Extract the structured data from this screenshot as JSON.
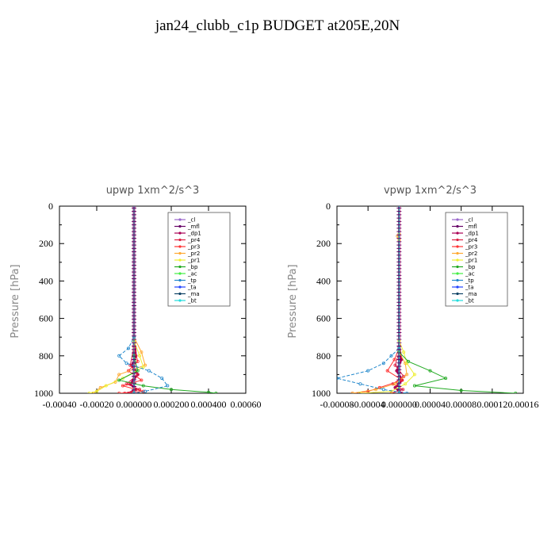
{
  "figure_title": "jan24_clubb_c1p  BUDGET at205E,20N",
  "colors": {
    "_cl": "#9966cc",
    "_mfl": "#660066",
    "_dp1": "#aa0055",
    "_pr4": "#dd2244",
    "_pr3": "#ff3333",
    "_pr2": "#ffaa33",
    "_pr1": "#eeee33",
    "_bp": "#22aa22",
    "_ac": "#44ee44",
    "_tp": "#2288cc",
    "_ta": "#2244ff",
    "_ma": "#114466",
    "_bt": "#22dddd"
  },
  "chart_data": [
    {
      "type": "line",
      "title": "upwp   1xm^2/s^3",
      "ylabel": "Pressure [hPa]",
      "xlim": [
        -0.0004,
        0.0006
      ],
      "ylim": [
        1000,
        0
      ],
      "x_ticks": [
        "-0.00040",
        "-0.00020",
        "0.000000",
        "0.000200",
        "0.000400",
        "0.00060"
      ],
      "x_tick_values": [
        -0.0004,
        -0.0002,
        0.0,
        0.0002,
        0.0004,
        0.0006
      ],
      "y_ticks": [
        0,
        200,
        400,
        600,
        800,
        1000
      ],
      "legend_position": "top-right",
      "series": [
        {
          "name": "_cl",
          "points": [
            [
              0,
              0
            ],
            [
              0,
              1000
            ]
          ]
        },
        {
          "name": "_mfl",
          "points": [
            [
              0,
              0
            ],
            [
              0,
              1000
            ]
          ]
        },
        {
          "name": "_dp1",
          "points": [
            [
              0,
              0
            ],
            [
              0,
              700
            ],
            [
              1e-05,
              800
            ],
            [
              -1e-05,
              850
            ],
            [
              2e-05,
              900
            ],
            [
              -2e-05,
              950
            ],
            [
              1e-05,
              980
            ],
            [
              -3e-05,
              1000
            ]
          ]
        },
        {
          "name": "_pr4",
          "points": [
            [
              0,
              0
            ],
            [
              0,
              750
            ],
            [
              -2e-05,
              850
            ],
            [
              2e-05,
              900
            ],
            [
              -4e-05,
              950
            ],
            [
              3e-05,
              980
            ],
            [
              -5e-05,
              1000
            ]
          ]
        },
        {
          "name": "_pr3",
          "points": [
            [
              0,
              0
            ],
            [
              0,
              750
            ],
            [
              2e-05,
              830
            ],
            [
              -3e-05,
              880
            ],
            [
              4e-05,
              930
            ],
            [
              -6e-05,
              960
            ],
            [
              5e-05,
              990
            ],
            [
              -8e-05,
              1000
            ]
          ]
        },
        {
          "name": "_pr2",
          "points": [
            [
              0,
              0
            ],
            [
              0,
              700
            ],
            [
              4e-05,
              780
            ],
            [
              6e-05,
              850
            ],
            [
              -8e-05,
              900
            ],
            [
              -0.0001,
              940
            ],
            [
              -0.00018,
              970
            ],
            [
              -0.00022,
              1000
            ]
          ]
        },
        {
          "name": "_pr1",
          "points": [
            [
              0,
              0
            ],
            [
              0,
              720
            ],
            [
              3e-05,
              800
            ],
            [
              5e-05,
              860
            ],
            [
              -6e-05,
              920
            ],
            [
              -0.00015,
              960
            ],
            [
              -0.0002,
              990
            ],
            [
              -0.00024,
              1000
            ]
          ]
        },
        {
          "name": "_bp",
          "points": [
            [
              0,
              0
            ],
            [
              0,
              800
            ],
            [
              2e-05,
              880
            ],
            [
              -8e-05,
              930
            ],
            [
              5e-05,
              960
            ],
            [
              0.0002,
              980
            ],
            [
              0.0004,
              995
            ],
            [
              0.00044,
              1000
            ]
          ]
        },
        {
          "name": "_ac",
          "points": [
            [
              0,
              0
            ],
            [
              0,
              1000
            ]
          ]
        },
        {
          "name": "_tp",
          "points": [
            [
              0,
              0
            ],
            [
              0,
              700
            ],
            [
              -3e-05,
              760
            ],
            [
              -8e-05,
              800
            ],
            [
              -4e-05,
              840
            ],
            [
              8e-05,
              880
            ],
            [
              0.00015,
              920
            ],
            [
              0.00018,
              960
            ],
            [
              6e-05,
              990
            ],
            [
              0,
              1000
            ]
          ]
        },
        {
          "name": "_ta",
          "points": [
            [
              0,
              0
            ],
            [
              0,
              1000
            ]
          ]
        },
        {
          "name": "_ma",
          "points": [
            [
              0,
              0
            ],
            [
              0,
              1000
            ]
          ]
        },
        {
          "name": "_bt",
          "points": [
            [
              0,
              0
            ],
            [
              0,
              1000
            ]
          ]
        }
      ]
    },
    {
      "type": "line",
      "title": "vpwp   1xm^2/s^3",
      "ylabel": "Pressure [hPa]",
      "xlim": [
        -8e-05,
        0.00016
      ],
      "ylim": [
        1000,
        0
      ],
      "x_ticks": [
        "-0.00008",
        "-0.00004",
        "0.000000",
        "0.00004",
        "0.00008",
        "0.00012",
        "0.00016"
      ],
      "x_tick_values": [
        -8e-05,
        -4e-05,
        0.0,
        4e-05,
        8e-05,
        0.00012,
        0.00016
      ],
      "y_ticks": [
        0,
        200,
        400,
        600,
        800,
        1000
      ],
      "legend_position": "top-right",
      "series": [
        {
          "name": "_cl",
          "points": [
            [
              0,
              0
            ],
            [
              0,
              1000
            ]
          ]
        },
        {
          "name": "_mfl",
          "points": [
            [
              0,
              0
            ],
            [
              0,
              1000
            ]
          ]
        },
        {
          "name": "_dp1",
          "points": [
            [
              0,
              0
            ],
            [
              0,
              750
            ],
            [
              3e-06,
              820
            ],
            [
              -3e-06,
              880
            ],
            [
              4e-06,
              930
            ],
            [
              -5e-06,
              970
            ],
            [
              3e-06,
              1000
            ]
          ]
        },
        {
          "name": "_pr4",
          "points": [
            [
              0,
              0
            ],
            [
              0,
              780
            ],
            [
              -5e-06,
              850
            ],
            [
              6e-06,
              910
            ],
            [
              -8e-06,
              950
            ],
            [
              5e-06,
              980
            ],
            [
              -1e-05,
              1000
            ]
          ]
        },
        {
          "name": "_pr3",
          "points": [
            [
              0,
              0
            ],
            [
              0,
              760
            ],
            [
              -6e-06,
              820
            ],
            [
              -1.5e-05,
              880
            ],
            [
              4e-06,
              930
            ],
            [
              -2.5e-05,
              970
            ],
            [
              -4e-05,
              990
            ],
            [
              -6e-05,
              1000
            ]
          ]
        },
        {
          "name": "_pr2",
          "points": [
            [
              0,
              0
            ],
            [
              0,
              150
            ],
            [
              -2e-06,
              160
            ],
            [
              0,
              180
            ],
            [
              0,
              780
            ],
            [
              8e-06,
              840
            ],
            [
              1e-05,
              900
            ],
            [
              -5e-06,
              950
            ],
            [
              -3e-05,
              980
            ],
            [
              -6e-05,
              1000
            ]
          ]
        },
        {
          "name": "_pr1",
          "points": [
            [
              0,
              0
            ],
            [
              0,
              720
            ],
            [
              6e-06,
              780
            ],
            [
              1e-05,
              840
            ],
            [
              2e-05,
              900
            ],
            [
              8e-06,
              950
            ],
            [
              -1e-05,
              990
            ],
            [
              -5e-05,
              1000
            ]
          ]
        },
        {
          "name": "_bp",
          "points": [
            [
              0,
              0
            ],
            [
              0,
              780
            ],
            [
              1.2e-05,
              830
            ],
            [
              4e-05,
              880
            ],
            [
              6e-05,
              920
            ],
            [
              2e-05,
              960
            ],
            [
              8e-05,
              985
            ],
            [
              0.00015,
              1000
            ]
          ]
        },
        {
          "name": "_ac",
          "points": [
            [
              0,
              0
            ],
            [
              0,
              1000
            ]
          ]
        },
        {
          "name": "_tp",
          "points": [
            [
              0,
              0
            ],
            [
              0,
              760
            ],
            [
              -1e-05,
              800
            ],
            [
              -2e-05,
              840
            ],
            [
              -4e-05,
              880
            ],
            [
              -8e-05,
              920
            ],
            [
              -5e-05,
              950
            ],
            [
              -2e-05,
              980
            ],
            [
              1e-05,
              1000
            ]
          ]
        },
        {
          "name": "_ta",
          "points": [
            [
              0,
              0
            ],
            [
              0,
              1000
            ]
          ]
        },
        {
          "name": "_ma",
          "points": [
            [
              0,
              0
            ],
            [
              0,
              1000
            ]
          ]
        },
        {
          "name": "_bt",
          "points": [
            [
              0,
              0
            ],
            [
              0,
              1000
            ]
          ]
        }
      ]
    }
  ]
}
